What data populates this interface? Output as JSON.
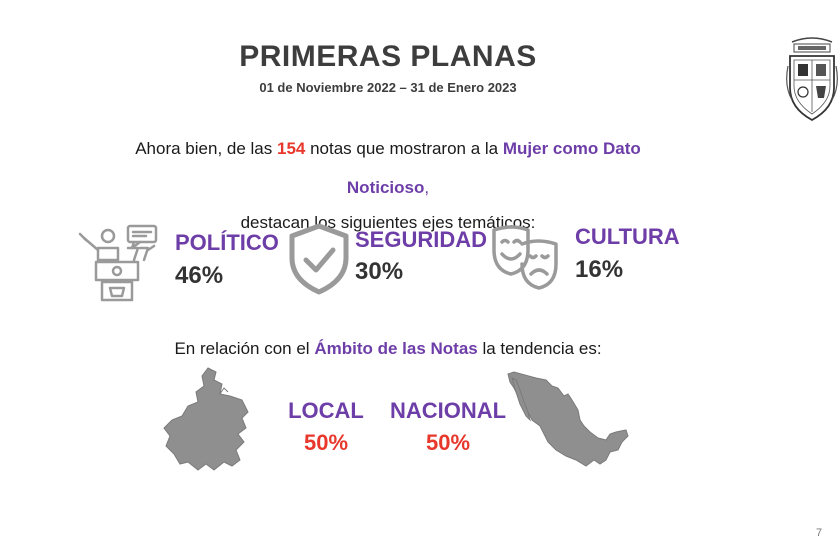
{
  "header": {
    "title": "PRIMERAS PLANAS",
    "subtitle": "01 de Noviembre 2022 – 31 de Enero 2023"
  },
  "intro": {
    "line1_prefix": "Ahora bien, de las ",
    "line1_count": "154",
    "line1_middle": " notas que mostraron a la ",
    "line1_highlight": "Mujer como Dato",
    "line2_highlight": "Noticioso",
    "line2_suffix": ",",
    "line3": "destacan los siguientes ejes temáticos:"
  },
  "themes": [
    {
      "label": "POLÍTICO",
      "value": "46%",
      "icon": "politician-podium-icon"
    },
    {
      "label": "SEGURIDAD",
      "value": "30%",
      "icon": "shield-check-icon"
    },
    {
      "label": "CULTURA",
      "value": "16%",
      "icon": "theater-masks-icon"
    }
  ],
  "ambito": {
    "prefix": "En relación con el ",
    "highlight": "Ámbito de las Notas",
    "suffix": " la tendencia es:",
    "items": [
      {
        "label": "LOCAL",
        "value": "50%",
        "icon": "jalisco-map-icon"
      },
      {
        "label": "NACIONAL",
        "value": "50%",
        "icon": "mexico-map-icon"
      }
    ]
  },
  "page_number": "7",
  "colors": {
    "title": "#3d3d3d",
    "accent_purple": "#6e3ea8",
    "accent_red": "#e8382c",
    "icon_gray": "#9a9a9a"
  }
}
